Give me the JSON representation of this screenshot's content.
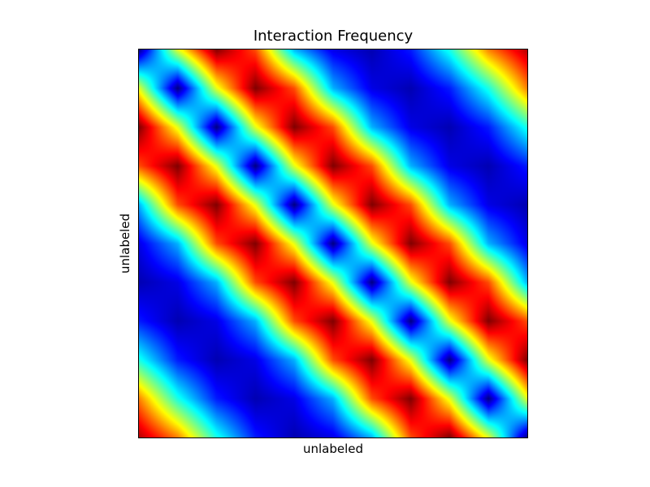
{
  "chart_data": {
    "type": "heatmap",
    "title": "Interaction Frequency",
    "xlabel": "unlabeled",
    "ylabel": "unlabeled",
    "colormap": "jet",
    "grid": false,
    "ticks_visible": false,
    "rows": 11,
    "cols": 11,
    "description_matrix": [
      [
        0.0,
        0.6,
        1.0,
        0.8,
        0.3,
        0.1,
        0.05,
        0.15,
        0.4,
        0.75,
        0.95
      ],
      [
        0.6,
        0.0,
        0.6,
        1.0,
        0.8,
        0.3,
        0.1,
        0.05,
        0.15,
        0.4,
        0.75
      ],
      [
        1.0,
        0.6,
        0.0,
        0.6,
        1.0,
        0.8,
        0.3,
        0.1,
        0.05,
        0.15,
        0.4
      ],
      [
        0.8,
        1.0,
        0.6,
        0.0,
        0.6,
        1.0,
        0.8,
        0.3,
        0.1,
        0.05,
        0.15
      ],
      [
        0.3,
        0.8,
        1.0,
        0.6,
        0.0,
        0.6,
        1.0,
        0.8,
        0.3,
        0.1,
        0.05
      ],
      [
        0.1,
        0.3,
        0.8,
        1.0,
        0.6,
        0.0,
        0.6,
        1.0,
        0.8,
        0.3,
        0.1
      ],
      [
        0.05,
        0.1,
        0.3,
        0.8,
        1.0,
        0.6,
        0.0,
        0.6,
        1.0,
        0.8,
        0.3
      ],
      [
        0.15,
        0.05,
        0.1,
        0.3,
        0.8,
        1.0,
        0.6,
        0.0,
        0.6,
        1.0,
        0.8
      ],
      [
        0.4,
        0.15,
        0.05,
        0.1,
        0.3,
        0.8,
        1.0,
        0.6,
        0.0,
        0.6,
        1.0
      ],
      [
        0.75,
        0.4,
        0.15,
        0.05,
        0.1,
        0.3,
        0.8,
        1.0,
        0.6,
        0.0,
        0.6
      ],
      [
        0.95,
        0.75,
        0.4,
        0.15,
        0.05,
        0.1,
        0.3,
        0.8,
        1.0,
        0.6,
        0.0
      ]
    ]
  }
}
